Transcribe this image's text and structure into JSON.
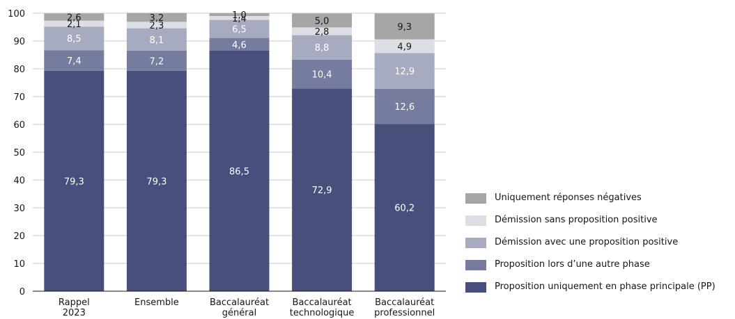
{
  "chart_data": {
    "type": "bar",
    "stacked": true,
    "categories": [
      [
        "Rappel",
        "2023"
      ],
      [
        "Ensemble"
      ],
      [
        "Baccalauréat",
        "général"
      ],
      [
        "Baccalauréat",
        "technologique"
      ],
      [
        "Baccalauréat",
        "professionnel"
      ]
    ],
    "ylim": [
      0,
      100
    ],
    "yticks": [
      0,
      10,
      20,
      30,
      40,
      50,
      60,
      70,
      80,
      90,
      100
    ],
    "grid": true,
    "legend_position": "right",
    "series": [
      {
        "name": "Proposition uniquement en phase principale (PP)",
        "color": "#474f7d",
        "label_color": "#ffffff",
        "values": [
          79.3,
          79.3,
          86.5,
          72.9,
          60.2
        ],
        "labels": [
          "79,3",
          "79,3",
          "86,5",
          "72,9",
          "60,2"
        ]
      },
      {
        "name": "Proposition lors d’une autre phase",
        "color": "#767c9d",
        "label_color": "#ffffff",
        "values": [
          7.4,
          7.2,
          4.6,
          10.4,
          12.6
        ],
        "labels": [
          "7,4",
          "7,2",
          "4,6",
          "10,4",
          "12,6"
        ]
      },
      {
        "name": "Démission avec une proposition positive",
        "color": "#a7abbf",
        "label_color": "#ffffff",
        "values": [
          8.5,
          8.1,
          6.5,
          8.8,
          12.9
        ],
        "labels": [
          "8,5",
          "8,1",
          "6,5",
          "8,8",
          "12,9"
        ]
      },
      {
        "name": "Démission sans proposition positive",
        "color": "#dcdee5",
        "label_color": "#161616",
        "values": [
          2.1,
          2.3,
          1.4,
          2.8,
          4.9
        ],
        "labels": [
          "2,1",
          "2,3",
          "1,4",
          "2,8",
          "4,9"
        ]
      },
      {
        "name": "Uniquement réponses négatives",
        "color": "#a6a6a6",
        "label_color": "#161616",
        "values": [
          2.6,
          3.2,
          1.0,
          5.0,
          9.3
        ],
        "labels": [
          "2,6",
          "3,2",
          "1,0",
          "5,0",
          "9,3"
        ]
      }
    ]
  }
}
